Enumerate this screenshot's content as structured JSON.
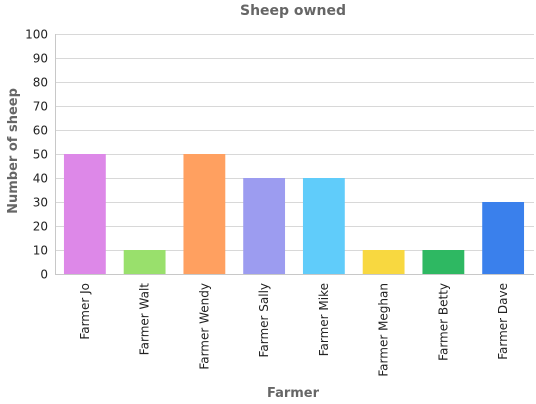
{
  "chart_data": {
    "type": "bar",
    "title": "Sheep owned",
    "xlabel": "Farmer",
    "ylabel": "Number of sheep",
    "categories": [
      "Farmer Jo",
      "Farmer Walt",
      "Farmer Wendy",
      "Farmer Sally",
      "Farmer Mike",
      "Farmer Meghan",
      "Farmer Betty",
      "Farmer Dave"
    ],
    "values": [
      50,
      10,
      50,
      40,
      40,
      10,
      10,
      30
    ],
    "colors": [
      "#dd88e8",
      "#99e06c",
      "#ffa060",
      "#9c9cf0",
      "#60ccfa",
      "#f8d840",
      "#2eb862",
      "#3a80ec"
    ],
    "ylim": [
      0,
      100
    ],
    "yticks": [
      0,
      10,
      20,
      30,
      40,
      50,
      60,
      70,
      80,
      90,
      100
    ],
    "grid": true,
    "legend": "none"
  }
}
